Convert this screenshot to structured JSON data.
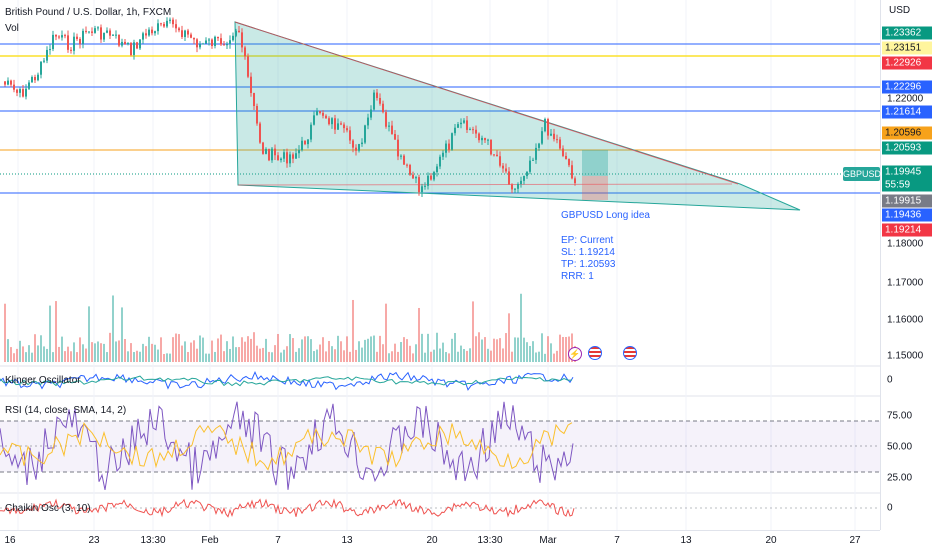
{
  "symbol": {
    "title": "British Pound / U.S. Dollar, 1h, FXCM",
    "volume_label": "Vol",
    "ticker": "GBPUSD"
  },
  "idea": {
    "title": "GBPUSD Long idea",
    "entry": "EP: Current",
    "stop": "SL: 1.19214",
    "target": "TP: 1.20593",
    "ratio": "RRR: 1"
  },
  "price_scale": {
    "currency": "USD",
    "ticks": [
      "1.22000",
      "1.18000",
      "1.17000",
      "1.16000",
      "1.15000"
    ],
    "badges": [
      {
        "value": "1.23362",
        "color": "#089981",
        "text_color": "#ffffff"
      },
      {
        "value": "1.23151",
        "color": "#fff59d",
        "text_color": "#131722"
      },
      {
        "value": "1.22926",
        "color": "#f23645",
        "text_color": "#ffffff"
      },
      {
        "value": "1.22296",
        "color": "#2962ff",
        "text_color": "#ffffff"
      },
      {
        "value": "1.21614",
        "color": "#2962ff",
        "text_color": "#ffffff"
      },
      {
        "value": "1.20596",
        "color": "#f7a21b",
        "text_color": "#131722"
      },
      {
        "value": "1.20593",
        "color": "#089981",
        "text_color": "#ffffff"
      },
      {
        "value": "1.19945",
        "color": "#089981",
        "text_color": "#ffffff"
      },
      {
        "value": "55:59",
        "color": "#089981",
        "text_color": "#ffffff"
      },
      {
        "value": "1.19915",
        "color": "#787b86",
        "text_color": "#ffffff"
      },
      {
        "value": "1.19436",
        "color": "#2962ff",
        "text_color": "#ffffff"
      },
      {
        "value": "1.19214",
        "color": "#f23645",
        "text_color": "#ffffff"
      }
    ]
  },
  "indicators": {
    "klinger": {
      "label": "Klinger Oscillator",
      "ticks": [
        "0"
      ]
    },
    "rsi": {
      "label": "RSI (14, close, SMA, 14, 2)",
      "ticks": [
        "75.00",
        "50.00",
        "25.00"
      ]
    },
    "chaikin": {
      "label": "Chaikin Osc (3, 10)",
      "ticks": [
        "0"
      ]
    }
  },
  "time_scale": {
    "ticks": [
      "16",
      "23",
      "13:30",
      "Feb",
      "7",
      "13",
      "20",
      "13:30",
      "Mar",
      "7",
      "13",
      "20",
      "27"
    ]
  },
  "colors": {
    "up": "#26a69a",
    "down": "#ef5350",
    "pattern_fill": "#b2dfdb",
    "accent": "#2962ff"
  },
  "icons": [
    "lightning-event-icon",
    "us-flag-event-icon",
    "us-flag-event-icon"
  ]
}
